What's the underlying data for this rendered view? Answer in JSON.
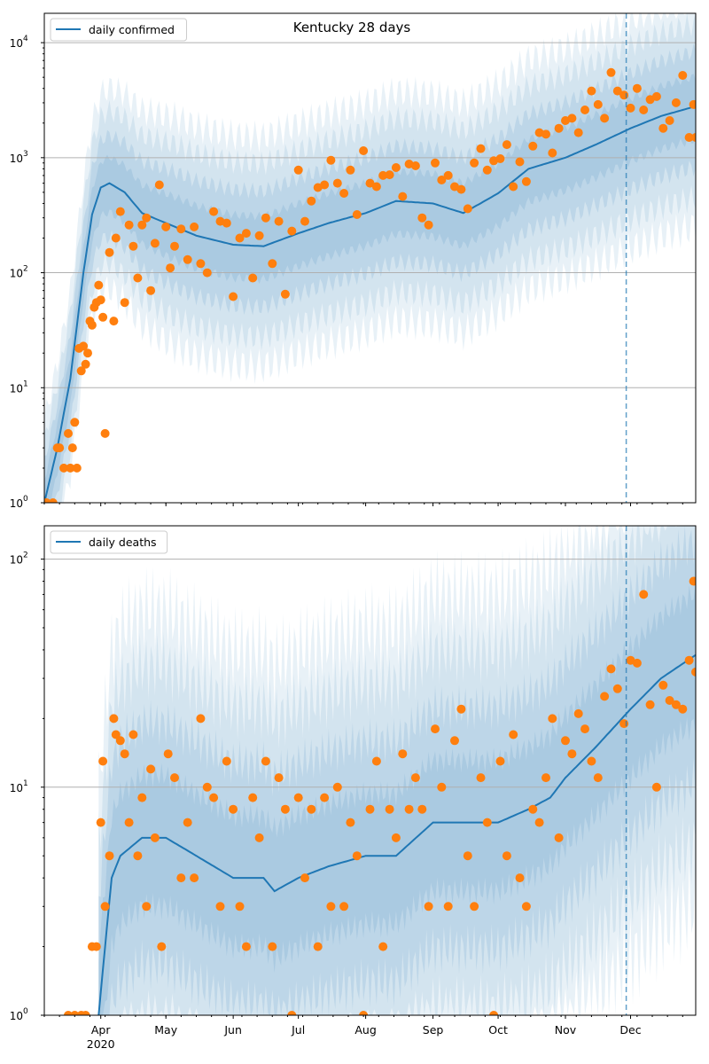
{
  "figure": {
    "title": "Kentucky 28 days"
  },
  "colors": {
    "model_line": "#1f77b4",
    "band": "#1f77b4",
    "observed": "#ff7f0e",
    "vline": "#1f77b4",
    "grid": "#b0b0b0"
  },
  "x_ticks": {
    "major": [
      "Apr",
      "May",
      "Jun",
      "Jul",
      "Aug",
      "Sep",
      "Oct",
      "Nov",
      "Dec"
    ],
    "major_dates": [
      "2020-04-01",
      "2020-05-01",
      "2020-06-01",
      "2020-07-01",
      "2020-08-01",
      "2020-09-01",
      "2020-10-01",
      "2020-11-01",
      "2020-12-01"
    ],
    "year_label": "2020",
    "x_start": "2020-03-06",
    "x_end": "2020-12-31",
    "forecast_start": "2020-11-29"
  },
  "chart_data": [
    {
      "type": "line",
      "title": "Kentucky 28 days",
      "legend": {
        "label": "daily confirmed",
        "placement": "upper-left"
      },
      "yscale": "log",
      "ylim": [
        1,
        18000
      ],
      "yticks": [
        1,
        10,
        100,
        1000,
        10000
      ],
      "ytick_labels": [
        [
          "10",
          "0"
        ],
        [
          "10",
          "1"
        ],
        [
          "10",
          "2"
        ],
        [
          "10",
          "3"
        ],
        [
          "10",
          "4"
        ]
      ],
      "grid": "horizontal",
      "model_series": {
        "name": "daily confirmed",
        "x": [
          "2020-03-06",
          "2020-03-12",
          "2020-03-18",
          "2020-03-24",
          "2020-03-28",
          "2020-04-01",
          "2020-04-05",
          "2020-04-12",
          "2020-04-20",
          "2020-05-01",
          "2020-05-15",
          "2020-06-01",
          "2020-06-15",
          "2020-07-01",
          "2020-07-15",
          "2020-08-01",
          "2020-08-15",
          "2020-09-01",
          "2020-09-15",
          "2020-10-01",
          "2020-10-15",
          "2020-11-01",
          "2020-11-15",
          "2020-12-01",
          "2020-12-15",
          "2020-12-31"
        ],
        "y": [
          1,
          3,
          12,
          100,
          320,
          550,
          600,
          500,
          330,
          270,
          210,
          175,
          170,
          220,
          270,
          330,
          420,
          400,
          330,
          490,
          800,
          1000,
          1300,
          1800,
          2300,
          2800
        ]
      },
      "observed_series": {
        "x": [
          "2020-03-07",
          "2020-03-10",
          "2020-03-12",
          "2020-03-13",
          "2020-03-15",
          "2020-03-17",
          "2020-03-18",
          "2020-03-19",
          "2020-03-20",
          "2020-03-21",
          "2020-03-22",
          "2020-03-23",
          "2020-03-24",
          "2020-03-25",
          "2020-03-26",
          "2020-03-27",
          "2020-03-28",
          "2020-03-29",
          "2020-03-30",
          "2020-03-31",
          "2020-04-01",
          "2020-04-02",
          "2020-04-03",
          "2020-04-05",
          "2020-04-07",
          "2020-04-08",
          "2020-04-10",
          "2020-04-12",
          "2020-04-14",
          "2020-04-16",
          "2020-04-18",
          "2020-04-20",
          "2020-04-22",
          "2020-04-24",
          "2020-04-26",
          "2020-04-28",
          "2020-05-01",
          "2020-05-03",
          "2020-05-05",
          "2020-05-08",
          "2020-05-11",
          "2020-05-14",
          "2020-05-17",
          "2020-05-20",
          "2020-05-23",
          "2020-05-26",
          "2020-05-29",
          "2020-06-01",
          "2020-06-04",
          "2020-06-07",
          "2020-06-10",
          "2020-06-13",
          "2020-06-16",
          "2020-06-19",
          "2020-06-22",
          "2020-06-25",
          "2020-06-28",
          "2020-07-01",
          "2020-07-04",
          "2020-07-07",
          "2020-07-10",
          "2020-07-13",
          "2020-07-16",
          "2020-07-19",
          "2020-07-22",
          "2020-07-25",
          "2020-07-28",
          "2020-07-31",
          "2020-08-03",
          "2020-08-06",
          "2020-08-09",
          "2020-08-12",
          "2020-08-15",
          "2020-08-18",
          "2020-08-21",
          "2020-08-24",
          "2020-08-27",
          "2020-08-30",
          "2020-09-02",
          "2020-09-05",
          "2020-09-08",
          "2020-09-11",
          "2020-09-14",
          "2020-09-17",
          "2020-09-20",
          "2020-09-23",
          "2020-09-26",
          "2020-09-29",
          "2020-10-02",
          "2020-10-05",
          "2020-10-08",
          "2020-10-11",
          "2020-10-14",
          "2020-10-17",
          "2020-10-20",
          "2020-10-23",
          "2020-10-26",
          "2020-10-29",
          "2020-11-01",
          "2020-11-04",
          "2020-11-07",
          "2020-11-10",
          "2020-11-13",
          "2020-11-16",
          "2020-11-19",
          "2020-11-22",
          "2020-11-25",
          "2020-11-28",
          "2020-12-01",
          "2020-12-04",
          "2020-12-07",
          "2020-12-10",
          "2020-12-13",
          "2020-12-16",
          "2020-12-19",
          "2020-12-22",
          "2020-12-25",
          "2020-12-28",
          "2020-12-30",
          "2020-12-31"
        ],
        "y": [
          1,
          1,
          3,
          3,
          2,
          4,
          2,
          3,
          5,
          2,
          22,
          14,
          23,
          16,
          20,
          38,
          35,
          50,
          55,
          78,
          58,
          41,
          4,
          150,
          38,
          200,
          340,
          55,
          260,
          170,
          90,
          260,
          300,
          70,
          180,
          580,
          250,
          110,
          170,
          240,
          130,
          250,
          120,
          100,
          340,
          280,
          270,
          62,
          200,
          220,
          90,
          210,
          300,
          120,
          280,
          65,
          230,
          780,
          280,
          420,
          550,
          580,
          950,
          600,
          490,
          780,
          320,
          1150,
          600,
          560,
          700,
          710,
          820,
          460,
          880,
          850,
          300,
          260,
          900,
          640,
          700,
          560,
          530,
          360,
          900,
          1200,
          780,
          940,
          980,
          1300,
          560,
          920,
          620,
          1260,
          1650,
          1600,
          1100,
          1800,
          2100,
          2200,
          1650,
          2600,
          3800,
          2900,
          2200,
          5500,
          3800,
          3500,
          2700,
          4000,
          2600,
          3200,
          3400,
          1800,
          2100,
          3000,
          5200,
          1500,
          2900,
          1500
        ]
      }
    },
    {
      "type": "line",
      "legend": {
        "label": "daily deaths",
        "placement": "upper-left"
      },
      "yscale": "log",
      "ylim": [
        1,
        140
      ],
      "yticks": [
        1,
        10,
        100
      ],
      "ytick_labels": [
        [
          "10",
          "0"
        ],
        [
          "10",
          "1"
        ],
        [
          "10",
          "2"
        ]
      ],
      "grid": "horizontal",
      "model_series": {
        "name": "daily deaths",
        "x": [
          "2020-03-31",
          "2020-04-03",
          "2020-04-06",
          "2020-04-10",
          "2020-04-20",
          "2020-05-01",
          "2020-05-15",
          "2020-06-01",
          "2020-06-15",
          "2020-06-20",
          "2020-07-01",
          "2020-07-15",
          "2020-08-01",
          "2020-08-15",
          "2020-09-01",
          "2020-09-15",
          "2020-10-01",
          "2020-10-15",
          "2020-10-25",
          "2020-11-01",
          "2020-11-15",
          "2020-12-01",
          "2020-12-15",
          "2020-12-31"
        ],
        "y": [
          1,
          2,
          4,
          5,
          6,
          6,
          5,
          4,
          4,
          3.5,
          4,
          4.5,
          5,
          5,
          7,
          7,
          7,
          8,
          9,
          11,
          15,
          22,
          30,
          38
        ]
      },
      "observed_series": {
        "x": [
          "2020-03-17",
          "2020-03-20",
          "2020-03-23",
          "2020-03-25",
          "2020-03-28",
          "2020-03-30",
          "2020-04-01",
          "2020-04-02",
          "2020-04-03",
          "2020-04-05",
          "2020-04-07",
          "2020-04-08",
          "2020-04-10",
          "2020-04-12",
          "2020-04-14",
          "2020-04-16",
          "2020-04-18",
          "2020-04-20",
          "2020-04-22",
          "2020-04-24",
          "2020-04-26",
          "2020-04-29",
          "2020-05-02",
          "2020-05-05",
          "2020-05-08",
          "2020-05-11",
          "2020-05-14",
          "2020-05-17",
          "2020-05-20",
          "2020-05-23",
          "2020-05-26",
          "2020-05-29",
          "2020-06-01",
          "2020-06-04",
          "2020-06-07",
          "2020-06-10",
          "2020-06-13",
          "2020-06-16",
          "2020-06-19",
          "2020-06-22",
          "2020-06-25",
          "2020-06-28",
          "2020-07-01",
          "2020-07-04",
          "2020-07-07",
          "2020-07-10",
          "2020-07-13",
          "2020-07-16",
          "2020-07-19",
          "2020-07-22",
          "2020-07-25",
          "2020-07-28",
          "2020-07-31",
          "2020-08-03",
          "2020-08-06",
          "2020-08-09",
          "2020-08-12",
          "2020-08-15",
          "2020-08-18",
          "2020-08-21",
          "2020-08-24",
          "2020-08-27",
          "2020-08-30",
          "2020-09-02",
          "2020-09-05",
          "2020-09-08",
          "2020-09-11",
          "2020-09-14",
          "2020-09-17",
          "2020-09-20",
          "2020-09-23",
          "2020-09-26",
          "2020-09-29",
          "2020-10-02",
          "2020-10-05",
          "2020-10-08",
          "2020-10-11",
          "2020-10-14",
          "2020-10-17",
          "2020-10-20",
          "2020-10-23",
          "2020-10-26",
          "2020-10-29",
          "2020-11-01",
          "2020-11-04",
          "2020-11-07",
          "2020-11-10",
          "2020-11-13",
          "2020-11-16",
          "2020-11-19",
          "2020-11-22",
          "2020-11-25",
          "2020-11-28",
          "2020-12-01",
          "2020-12-04",
          "2020-12-07",
          "2020-12-10",
          "2020-12-13",
          "2020-12-16",
          "2020-12-19",
          "2020-12-22",
          "2020-12-25",
          "2020-12-28",
          "2020-12-30",
          "2020-12-31"
        ],
        "y": [
          1,
          1,
          1,
          1,
          2,
          2,
          7,
          13,
          3,
          5,
          20,
          17,
          16,
          14,
          7,
          17,
          5,
          9,
          3,
          12,
          6,
          2,
          14,
          11,
          4,
          7,
          4,
          20,
          10,
          9,
          3,
          13,
          8,
          3,
          2,
          9,
          6,
          13,
          2,
          11,
          8,
          1,
          9,
          4,
          8,
          2,
          9,
          3,
          10,
          3,
          7,
          5,
          1,
          8,
          13,
          2,
          8,
          6,
          14,
          8,
          11,
          8,
          3,
          18,
          10,
          3,
          16,
          22,
          5,
          3,
          11,
          7,
          1,
          13,
          5,
          17,
          4,
          3,
          8,
          7,
          11,
          20,
          6,
          16,
          14,
          21,
          18,
          13,
          11,
          25,
          33,
          27,
          19,
          36,
          35,
          70,
          23,
          10,
          28,
          24,
          23,
          22,
          36,
          80,
          32
        ]
      }
    }
  ]
}
